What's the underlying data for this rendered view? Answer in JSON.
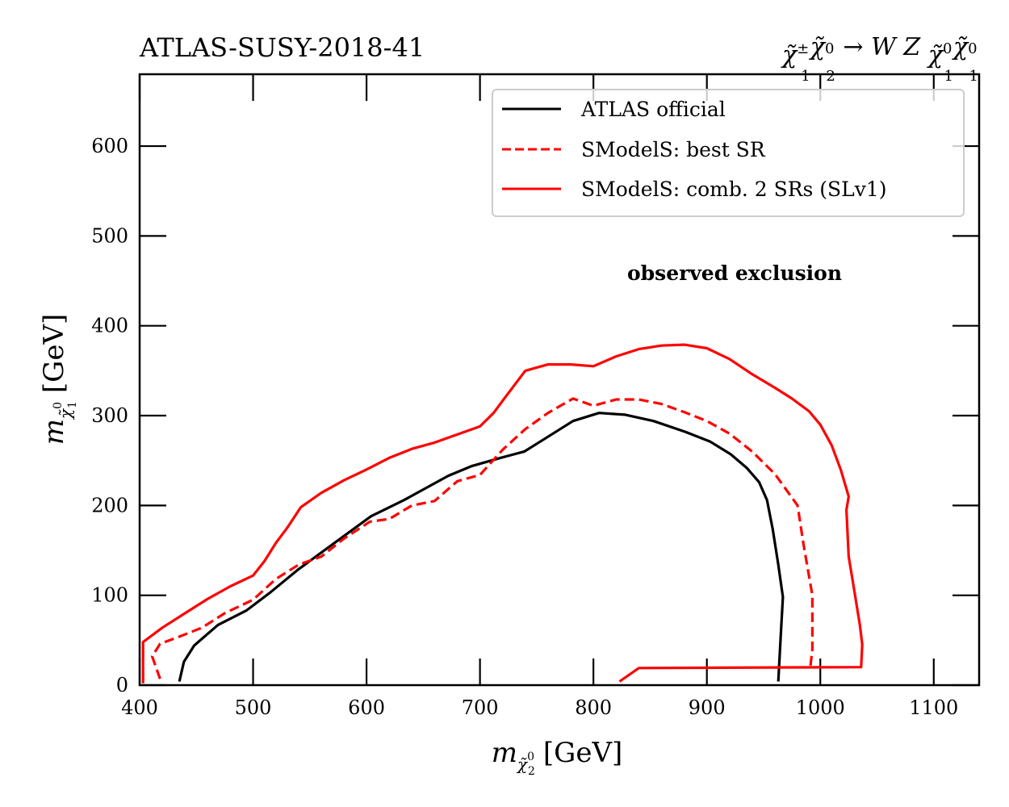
{
  "chart_data": {
    "type": "line",
    "title_left": "ATLAS-SUSY-2018-41",
    "title_right": {
      "parts": [
        "χ̃",
        "±",
        "1",
        "χ̃",
        "0",
        "2",
        " → WZ",
        "χ̃",
        "0",
        "1",
        "χ̃",
        "0",
        "1"
      ],
      "text": "χ̃±1 χ̃02 → W Z χ̃01 χ̃01"
    },
    "xlabel": {
      "symbol": "m",
      "sub": "χ̃",
      "subsup": "0",
      "subsub": "2",
      "unit": "[GeV]"
    },
    "ylabel": {
      "symbol": "m",
      "sub": "χ̃",
      "subsup": "0",
      "subsub": "1",
      "unit": "[GeV]"
    },
    "xlim": [
      400,
      1140
    ],
    "ylim": [
      0,
      680
    ],
    "xticks": [
      400,
      500,
      600,
      700,
      800,
      900,
      1000,
      1100
    ],
    "xtick_labels": [
      "400",
      "500",
      "600",
      "700",
      "800",
      "900",
      "1000",
      "1100"
    ],
    "yticks": [
      0,
      100,
      200,
      300,
      400,
      500,
      600
    ],
    "ytick_labels": [
      "0",
      "100",
      "200",
      "300",
      "400",
      "500",
      "600"
    ],
    "grid": false,
    "legend_position": "top-right",
    "annotation": "observed exclusion",
    "series": [
      {
        "name": "ATLAS official",
        "color": "#000000",
        "style": "solid",
        "x": [
          435,
          439,
          448,
          469,
          494,
          515,
          540,
          579,
          604,
          633,
          672,
          693,
          718,
          739,
          753,
          782,
          805,
          828,
          853,
          881,
          903,
          921,
          935,
          946,
          953,
          958,
          963,
          967,
          965,
          963
        ],
        "y": [
          4,
          26,
          44,
          67,
          83,
          103,
          129,
          165,
          188,
          206,
          233,
          244,
          253,
          260,
          271,
          294,
          303,
          301,
          294,
          282,
          271,
          257,
          242,
          226,
          206,
          174,
          134,
          98,
          53,
          4
        ]
      },
      {
        "name": "SModelS: best SR",
        "color": "#ff0000",
        "style": "dashed",
        "x": [
          418,
          411,
          418,
          435,
          455,
          475,
          500,
          520,
          540,
          560,
          580,
          603,
          620,
          640,
          660,
          680,
          700,
          720,
          740,
          760,
          782,
          800,
          820,
          840,
          860,
          880,
          900,
          920,
          940,
          960,
          980,
          985,
          993,
          993,
          991
        ],
        "y": [
          7,
          32,
          46,
          54,
          64,
          80,
          95,
          118,
          134,
          143,
          163,
          182,
          185,
          200,
          205,
          227,
          234,
          262,
          285,
          303,
          319,
          311,
          318,
          318,
          313,
          304,
          294,
          280,
          260,
          235,
          200,
          158,
          100,
          40,
          18
        ]
      },
      {
        "name": "SModelS: comb. 2 SRs (SLv1)",
        "color": "#ff0000",
        "style": "solid",
        "x": [
          403,
          403,
          420,
          440,
          460,
          480,
          500,
          510,
          520,
          530,
          542,
          560,
          580,
          600,
          620,
          640,
          660,
          680,
          700,
          712,
          722,
          740,
          760,
          780,
          800,
          820,
          840,
          860,
          880,
          900,
          920,
          940,
          960,
          975,
          990,
          1000,
          1010,
          1018,
          1025,
          1023,
          1025,
          1030,
          1035,
          1037,
          1036,
          840,
          823
        ],
        "y": [
          2,
          48,
          64,
          80,
          96,
          110,
          122,
          138,
          158,
          175,
          198,
          214,
          228,
          240,
          253,
          263,
          270,
          279,
          288,
          303,
          320,
          350,
          357,
          357,
          355,
          366,
          374,
          378,
          379,
          375,
          363,
          346,
          331,
          319,
          305,
          290,
          267,
          240,
          210,
          195,
          143,
          105,
          66,
          45,
          20,
          19,
          4
        ]
      }
    ]
  }
}
